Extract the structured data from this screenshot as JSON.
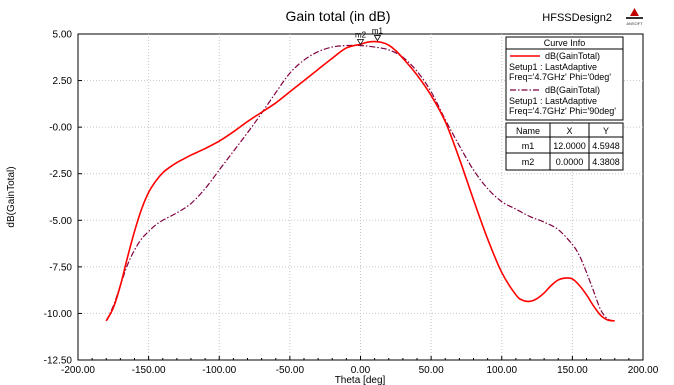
{
  "app": {
    "design_name": "HFSSDesign2",
    "logo_text": "ANSOFT"
  },
  "chart_data": {
    "type": "line",
    "title": "Gain total (in dB)",
    "xlabel": "Theta [deg]",
    "ylabel": "dB(GainTotal)",
    "xlim": [
      -200,
      200
    ],
    "ylim": [
      -12.5,
      5
    ],
    "xticks": [
      -200,
      -150,
      -100,
      -50,
      0,
      50,
      100,
      150,
      200
    ],
    "yticks": [
      5,
      2.5,
      0,
      -2.5,
      -5,
      -7.5,
      -10,
      -12.5
    ],
    "xtick_labels": [
      "-200.00",
      "-150.00",
      "-100.00",
      "-50.00",
      "0.00",
      "50.00",
      "100.00",
      "150.00",
      "200.00"
    ],
    "ytick_labels": [
      "5.00",
      "2.50",
      "-0.00",
      "-2.50",
      "-5.00",
      "-7.50",
      "-10.00",
      "-12.50"
    ],
    "grid": true,
    "series": [
      {
        "name": "dB(GainTotal)",
        "setup": "Setup1 : LastAdaptive",
        "params": "Freq='4.7GHz' Phi='0deg'",
        "color": "#ff0000",
        "style": "solid",
        "x": [
          -180,
          -175,
          -170,
          -165,
          -160,
          -155,
          -150,
          -145,
          -140,
          -135,
          -130,
          -125,
          -120,
          -110,
          -100,
          -90,
          -80,
          -70,
          -60,
          -50,
          -40,
          -30,
          -20,
          -10,
          0,
          5,
          10,
          15,
          20,
          25,
          30,
          40,
          50,
          60,
          70,
          80,
          90,
          100,
          110,
          115,
          120,
          125,
          130,
          135,
          140,
          145,
          150,
          155,
          160,
          165,
          170,
          175,
          180
        ],
        "y": [
          -10.4,
          -9.7,
          -8.5,
          -7.0,
          -5.6,
          -4.4,
          -3.5,
          -2.9,
          -2.45,
          -2.15,
          -1.9,
          -1.7,
          -1.5,
          -1.15,
          -0.75,
          -0.25,
          0.3,
          0.8,
          1.3,
          1.9,
          2.5,
          3.1,
          3.7,
          4.25,
          4.45,
          4.56,
          4.5948,
          4.55,
          4.4,
          4.1,
          3.7,
          2.8,
          1.7,
          0.3,
          -1.7,
          -3.9,
          -6.0,
          -7.8,
          -9.0,
          -9.3,
          -9.35,
          -9.2,
          -8.9,
          -8.5,
          -8.2,
          -8.1,
          -8.15,
          -8.5,
          -9.0,
          -9.6,
          -10.1,
          -10.35,
          -10.4
        ]
      },
      {
        "name": "dB(GainTotal)",
        "setup": "Setup1 : LastAdaptive",
        "params": "Freq='4.7GHz' Phi='90deg'",
        "color": "#800040",
        "style": "dashdot",
        "x": [
          -180,
          -175,
          -170,
          -165,
          -160,
          -155,
          -150,
          -145,
          -140,
          -130,
          -120,
          -110,
          -100,
          -90,
          -80,
          -70,
          -60,
          -50,
          -40,
          -30,
          -20,
          -10,
          0,
          10,
          20,
          30,
          40,
          50,
          60,
          70,
          80,
          90,
          100,
          110,
          120,
          130,
          140,
          150,
          155,
          160,
          165,
          170,
          175,
          180
        ],
        "y": [
          -10.4,
          -9.6,
          -8.5,
          -7.4,
          -6.6,
          -6.0,
          -5.6,
          -5.25,
          -5.0,
          -4.6,
          -4.1,
          -3.3,
          -2.3,
          -1.3,
          -0.3,
          0.75,
          1.85,
          2.9,
          3.6,
          4.05,
          4.3,
          4.38,
          4.3808,
          4.3,
          4.15,
          3.75,
          3.0,
          1.9,
          0.4,
          -1.0,
          -2.3,
          -3.3,
          -4.0,
          -4.4,
          -4.8,
          -5.1,
          -5.5,
          -6.3,
          -6.9,
          -7.8,
          -8.8,
          -9.8,
          -10.3,
          -10.4
        ]
      }
    ],
    "markers": [
      {
        "name": "m1",
        "x": 12.0,
        "y": 4.5948
      },
      {
        "name": "m2",
        "x": 0.0,
        "y": 4.3808
      }
    ],
    "legend": {
      "title": "Curve Info",
      "placement": "top-right"
    },
    "marker_table": {
      "columns": [
        "Name",
        "X",
        "Y"
      ],
      "rows": [
        [
          "m1",
          "12.0000",
          "4.5948"
        ],
        [
          "m2",
          "0.0000",
          "4.3808"
        ]
      ]
    }
  }
}
